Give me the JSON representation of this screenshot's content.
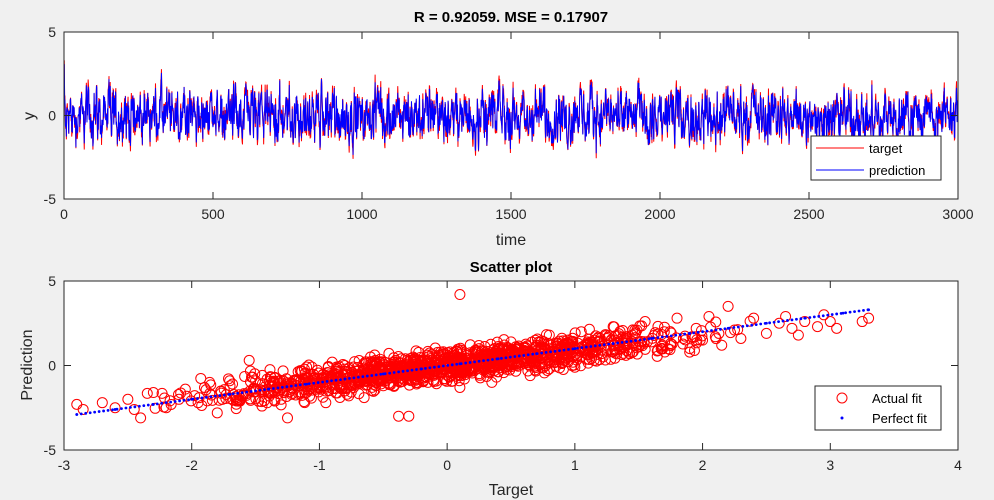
{
  "chart_data": [
    {
      "type": "line",
      "title": "R = 0.92059. MSE = 0.17907",
      "xlabel": "time",
      "ylabel": "y",
      "xlim": [
        0,
        3000
      ],
      "ylim": [
        -5,
        5
      ],
      "xticks": [
        "0",
        "500",
        "1000",
        "1500",
        "2000",
        "2500",
        "3000"
      ],
      "yticks": [
        "5",
        "0",
        "-5"
      ],
      "grid": false,
      "legend_position": "bottom-right",
      "n_points": 3000,
      "series": [
        {
          "name": "target",
          "color": "#ff0000",
          "kind": "line",
          "summary": "noisy signal oscillating about 0, mostly between -3 and 3.3"
        },
        {
          "name": "prediction",
          "color": "#0000ff",
          "kind": "line",
          "summary": "closely tracks target (R = 0.92059)"
        }
      ]
    },
    {
      "type": "scatter",
      "title": "Scatter plot",
      "xlabel": "Target",
      "ylabel": "Prediction",
      "xlim": [
        -3,
        4
      ],
      "ylim": [
        -5,
        5
      ],
      "xticks": [
        "-3",
        "-2",
        "-1",
        "0",
        "1",
        "2",
        "3",
        "4"
      ],
      "yticks": [
        "5",
        "0",
        "-5"
      ],
      "grid": false,
      "legend_position": "bottom-right",
      "series": [
        {
          "name": "Actual fit",
          "color": "#ff0000",
          "marker": "open-circle",
          "points": [
            [
              -2.9,
              -2.3
            ],
            [
              -2.85,
              -2.6
            ],
            [
              -2.7,
              -2.2
            ],
            [
              -2.6,
              -2.5
            ],
            [
              -2.5,
              -2.0
            ],
            [
              -2.45,
              -2.6
            ],
            [
              -2.4,
              -3.1
            ],
            [
              -2.3,
              -1.6
            ],
            [
              -2.2,
              -2.5
            ],
            [
              -2.1,
              -2.0
            ],
            [
              -2.05,
              -1.4
            ],
            [
              -1.95,
              -2.2
            ],
            [
              -1.9,
              -1.3
            ],
            [
              -1.8,
              -2.8
            ],
            [
              -1.7,
              -1.2
            ],
            [
              -1.65,
              -2.1
            ],
            [
              -1.6,
              -1.8
            ],
            [
              -1.55,
              0.3
            ],
            [
              -1.5,
              -0.9
            ],
            [
              -1.45,
              -2.4
            ],
            [
              -1.4,
              -1.5
            ],
            [
              -1.35,
              -0.7
            ],
            [
              -1.3,
              -2.0
            ],
            [
              -1.25,
              -3.1
            ],
            [
              -1.2,
              -1.1
            ],
            [
              -1.15,
              -0.3
            ],
            [
              -1.1,
              -1.6
            ],
            [
              -1.05,
              -0.9
            ],
            [
              -1.0,
              -1.3
            ],
            [
              -0.95,
              -2.2
            ],
            [
              -0.9,
              0.2
            ],
            [
              -0.85,
              -0.8
            ],
            [
              -0.8,
              -1.5
            ],
            [
              -0.75,
              -0.4
            ],
            [
              -0.7,
              -1.0
            ],
            [
              -0.65,
              -1.9
            ],
            [
              -0.6,
              0.5
            ],
            [
              -0.55,
              -0.6
            ],
            [
              -0.5,
              -1.2
            ],
            [
              -0.45,
              -0.2
            ],
            [
              -0.4,
              -0.8
            ],
            [
              -0.38,
              -3.0
            ],
            [
              -0.3,
              -3.0
            ],
            [
              -0.25,
              -0.5
            ],
            [
              -0.2,
              0.3
            ],
            [
              -0.15,
              -1.0
            ],
            [
              -0.1,
              -0.2
            ],
            [
              -0.05,
              0.8
            ],
            [
              0.0,
              -0.4
            ],
            [
              0.05,
              0.2
            ],
            [
              0.1,
              4.2
            ],
            [
              0.1,
              -1.3
            ],
            [
              0.15,
              0.6
            ],
            [
              0.2,
              -0.2
            ],
            [
              0.25,
              1.0
            ],
            [
              0.3,
              0.1
            ],
            [
              0.35,
              -1.0
            ],
            [
              0.4,
              0.7
            ],
            [
              0.45,
              0.3
            ],
            [
              0.5,
              1.4
            ],
            [
              0.55,
              0.2
            ],
            [
              0.6,
              0.9
            ],
            [
              0.65,
              -0.6
            ],
            [
              0.7,
              1.2
            ],
            [
              0.75,
              0.5
            ],
            [
              0.8,
              1.8
            ],
            [
              0.85,
              0.8
            ],
            [
              0.9,
              0.2
            ],
            [
              0.95,
              1.3
            ],
            [
              1.0,
              0.6
            ],
            [
              1.05,
              2.0
            ],
            [
              1.1,
              1.0
            ],
            [
              1.15,
              0.3
            ],
            [
              1.2,
              1.6
            ],
            [
              1.25,
              0.9
            ],
            [
              1.3,
              2.3
            ],
            [
              1.35,
              1.2
            ],
            [
              1.4,
              0.6
            ],
            [
              1.45,
              1.8
            ],
            [
              1.5,
              1.1
            ],
            [
              1.55,
              2.6
            ],
            [
              1.6,
              1.4
            ],
            [
              1.65,
              0.9
            ],
            [
              1.7,
              2.0
            ],
            [
              1.75,
              1.3
            ],
            [
              1.8,
              2.8
            ],
            [
              1.85,
              1.6
            ],
            [
              1.9,
              1.0
            ],
            [
              1.95,
              2.2
            ],
            [
              2.0,
              1.5
            ],
            [
              2.05,
              2.9
            ],
            [
              2.1,
              1.7
            ],
            [
              2.15,
              1.2
            ],
            [
              2.2,
              3.5
            ],
            [
              2.25,
              2.1
            ],
            [
              2.3,
              1.6
            ],
            [
              2.4,
              2.8
            ],
            [
              2.5,
              1.9
            ],
            [
              2.6,
              2.5
            ],
            [
              2.65,
              2.9
            ],
            [
              2.7,
              2.2
            ],
            [
              2.75,
              1.8
            ],
            [
              2.8,
              2.6
            ],
            [
              2.9,
              2.3
            ],
            [
              2.95,
              3.0
            ],
            [
              3.0,
              2.6
            ],
            [
              3.05,
              2.2
            ],
            [
              3.25,
              2.6
            ],
            [
              3.3,
              2.8
            ]
          ]
        },
        {
          "name": "Perfect fit",
          "color": "#0000ff",
          "marker": "dot",
          "points": [
            [
              -2.9,
              -2.9
            ],
            [
              -2.6,
              -2.6
            ],
            [
              -2.3,
              -2.3
            ],
            [
              -2.0,
              -2.0
            ],
            [
              -1.7,
              -1.7
            ],
            [
              -1.4,
              -1.4
            ],
            [
              -1.1,
              -1.1
            ],
            [
              -0.8,
              -0.8
            ],
            [
              -0.5,
              -0.5
            ],
            [
              -0.2,
              -0.2
            ],
            [
              0.1,
              0.1
            ],
            [
              0.4,
              0.4
            ],
            [
              0.7,
              0.7
            ],
            [
              1.0,
              1.0
            ],
            [
              1.3,
              1.3
            ],
            [
              1.6,
              1.6
            ],
            [
              1.9,
              1.9
            ],
            [
              2.2,
              2.2
            ],
            [
              2.5,
              2.5
            ],
            [
              2.8,
              2.8
            ],
            [
              3.1,
              3.1
            ],
            [
              3.3,
              3.3
            ]
          ]
        }
      ]
    }
  ]
}
